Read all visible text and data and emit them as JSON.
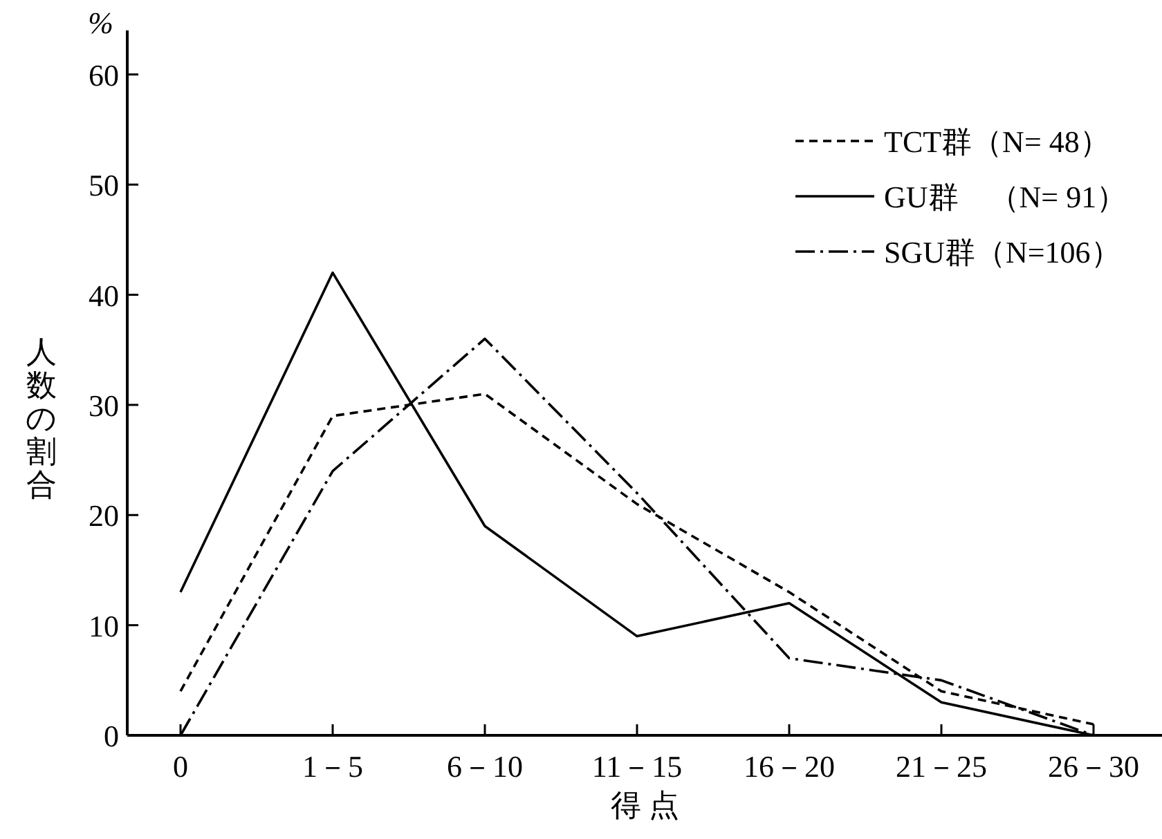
{
  "chart_data": {
    "type": "line",
    "xlabel": "得 点",
    "ylabel": "人数の割合",
    "annotations": [
      "%"
    ],
    "categories": [
      "0",
      "1－5",
      "6－10",
      "11－15",
      "16－20",
      "21－25",
      "26－30"
    ],
    "series": [
      {
        "name": "TCT群（N= 48）",
        "color": "#000000",
        "line_style": "dashed",
        "values": [
          4,
          29,
          31,
          21,
          13,
          4,
          1
        ]
      },
      {
        "name": "GU群　（N= 91）",
        "color": "#000000",
        "line_style": "solid",
        "values": [
          13,
          42,
          19,
          9,
          12,
          3,
          0
        ]
      },
      {
        "name": "SGU群（N=106）",
        "color": "#000000",
        "line_style": "dashdot",
        "values": [
          0,
          24,
          36,
          22,
          7,
          5,
          0
        ]
      }
    ],
    "ylim": [
      0,
      64
    ],
    "yticks": [
      0,
      10,
      20,
      30,
      40,
      50,
      60
    ],
    "grid": false,
    "legend": "top right",
    "marker": "none"
  }
}
